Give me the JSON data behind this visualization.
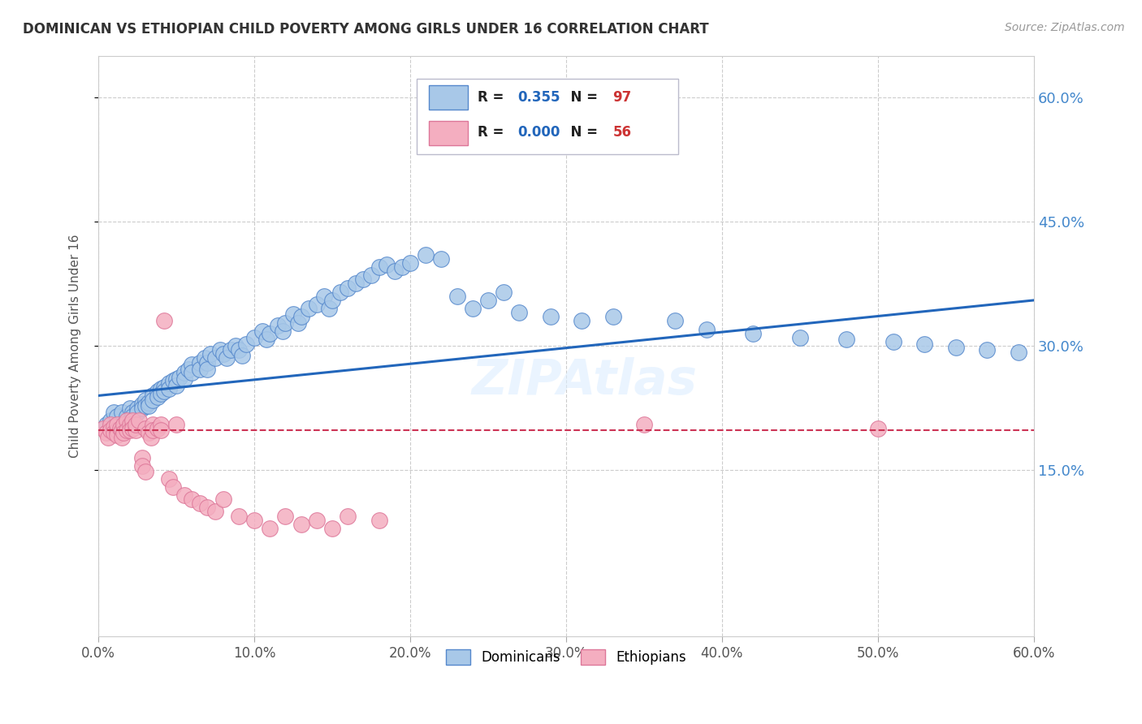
{
  "title": "DOMINICAN VS ETHIOPIAN CHILD POVERTY AMONG GIRLS UNDER 16 CORRELATION CHART",
  "source": "Source: ZipAtlas.com",
  "ylabel": "Child Poverty Among Girls Under 16",
  "xlim": [
    0.0,
    0.6
  ],
  "ylim": [
    -0.05,
    0.65
  ],
  "ytick_vals": [
    0.15,
    0.3,
    0.45,
    0.6
  ],
  "ytick_labels": [
    "15.0%",
    "30.0%",
    "45.0%",
    "60.0%"
  ],
  "xtick_vals": [
    0.0,
    0.1,
    0.2,
    0.3,
    0.4,
    0.5,
    0.6
  ],
  "xtick_labels": [
    "0.0%",
    "10.0%",
    "20.0%",
    "30.0%",
    "40.0%",
    "50.0%",
    "60.0%"
  ],
  "dominican_color": "#a8c8e8",
  "dominican_edge": "#5588cc",
  "ethiopian_color": "#f4aec0",
  "ethiopian_edge": "#dd7799",
  "trendline_dom_color": "#2266bb",
  "trendline_eth_color": "#cc3355",
  "R_dominican": "0.355",
  "N_dominican": "97",
  "R_ethiopian": "0.000",
  "N_ethiopian": "56",
  "watermark": "ZIPAtlas",
  "background_color": "#ffffff",
  "grid_color": "#cccccc",
  "axis_color": "#888888",
  "right_tick_color": "#4488cc",
  "dominican_x": [
    0.005,
    0.008,
    0.01,
    0.012,
    0.015,
    0.018,
    0.02,
    0.02,
    0.022,
    0.022,
    0.025,
    0.025,
    0.028,
    0.028,
    0.03,
    0.03,
    0.032,
    0.032,
    0.035,
    0.035,
    0.038,
    0.038,
    0.04,
    0.04,
    0.042,
    0.042,
    0.045,
    0.045,
    0.048,
    0.05,
    0.05,
    0.052,
    0.055,
    0.055,
    0.058,
    0.06,
    0.06,
    0.065,
    0.065,
    0.068,
    0.07,
    0.07,
    0.072,
    0.075,
    0.078,
    0.08,
    0.082,
    0.085,
    0.088,
    0.09,
    0.092,
    0.095,
    0.1,
    0.105,
    0.108,
    0.11,
    0.115,
    0.118,
    0.12,
    0.125,
    0.128,
    0.13,
    0.135,
    0.14,
    0.145,
    0.148,
    0.15,
    0.155,
    0.16,
    0.165,
    0.17,
    0.175,
    0.18,
    0.185,
    0.19,
    0.195,
    0.2,
    0.21,
    0.22,
    0.23,
    0.24,
    0.25,
    0.26,
    0.27,
    0.29,
    0.31,
    0.33,
    0.37,
    0.39,
    0.42,
    0.45,
    0.48,
    0.51,
    0.53,
    0.55,
    0.57,
    0.59
  ],
  "dominican_y": [
    0.205,
    0.21,
    0.22,
    0.215,
    0.22,
    0.215,
    0.21,
    0.225,
    0.22,
    0.215,
    0.225,
    0.22,
    0.23,
    0.225,
    0.235,
    0.228,
    0.232,
    0.228,
    0.24,
    0.235,
    0.245,
    0.238,
    0.248,
    0.242,
    0.25,
    0.245,
    0.255,
    0.248,
    0.258,
    0.26,
    0.252,
    0.262,
    0.268,
    0.26,
    0.272,
    0.278,
    0.268,
    0.28,
    0.272,
    0.285,
    0.28,
    0.272,
    0.29,
    0.285,
    0.295,
    0.29,
    0.285,
    0.295,
    0.3,
    0.295,
    0.288,
    0.302,
    0.31,
    0.318,
    0.308,
    0.315,
    0.325,
    0.318,
    0.328,
    0.338,
    0.328,
    0.335,
    0.345,
    0.35,
    0.36,
    0.345,
    0.355,
    0.365,
    0.37,
    0.375,
    0.38,
    0.385,
    0.395,
    0.398,
    0.39,
    0.395,
    0.4,
    0.41,
    0.405,
    0.36,
    0.345,
    0.355,
    0.365,
    0.34,
    0.335,
    0.33,
    0.335,
    0.33,
    0.32,
    0.315,
    0.31,
    0.308,
    0.305,
    0.302,
    0.298,
    0.295,
    0.292
  ],
  "ethiopian_x": [
    0.003,
    0.005,
    0.006,
    0.008,
    0.008,
    0.01,
    0.01,
    0.012,
    0.012,
    0.012,
    0.014,
    0.015,
    0.015,
    0.016,
    0.016,
    0.018,
    0.018,
    0.02,
    0.02,
    0.022,
    0.022,
    0.024,
    0.024,
    0.026,
    0.028,
    0.028,
    0.03,
    0.03,
    0.032,
    0.034,
    0.035,
    0.035,
    0.038,
    0.04,
    0.04,
    0.042,
    0.045,
    0.048,
    0.05,
    0.055,
    0.06,
    0.065,
    0.07,
    0.075,
    0.08,
    0.09,
    0.1,
    0.11,
    0.12,
    0.13,
    0.14,
    0.15,
    0.16,
    0.18,
    0.35,
    0.5
  ],
  "ethiopian_y": [
    0.2,
    0.195,
    0.19,
    0.205,
    0.198,
    0.202,
    0.195,
    0.198,
    0.205,
    0.192,
    0.2,
    0.198,
    0.19,
    0.205,
    0.195,
    0.21,
    0.198,
    0.205,
    0.198,
    0.21,
    0.2,
    0.198,
    0.205,
    0.21,
    0.165,
    0.155,
    0.148,
    0.2,
    0.195,
    0.19,
    0.205,
    0.198,
    0.2,
    0.205,
    0.198,
    0.33,
    0.14,
    0.13,
    0.205,
    0.12,
    0.115,
    0.11,
    0.105,
    0.1,
    0.115,
    0.095,
    0.09,
    0.08,
    0.095,
    0.085,
    0.09,
    0.08,
    0.095,
    0.09,
    0.205,
    0.2
  ]
}
